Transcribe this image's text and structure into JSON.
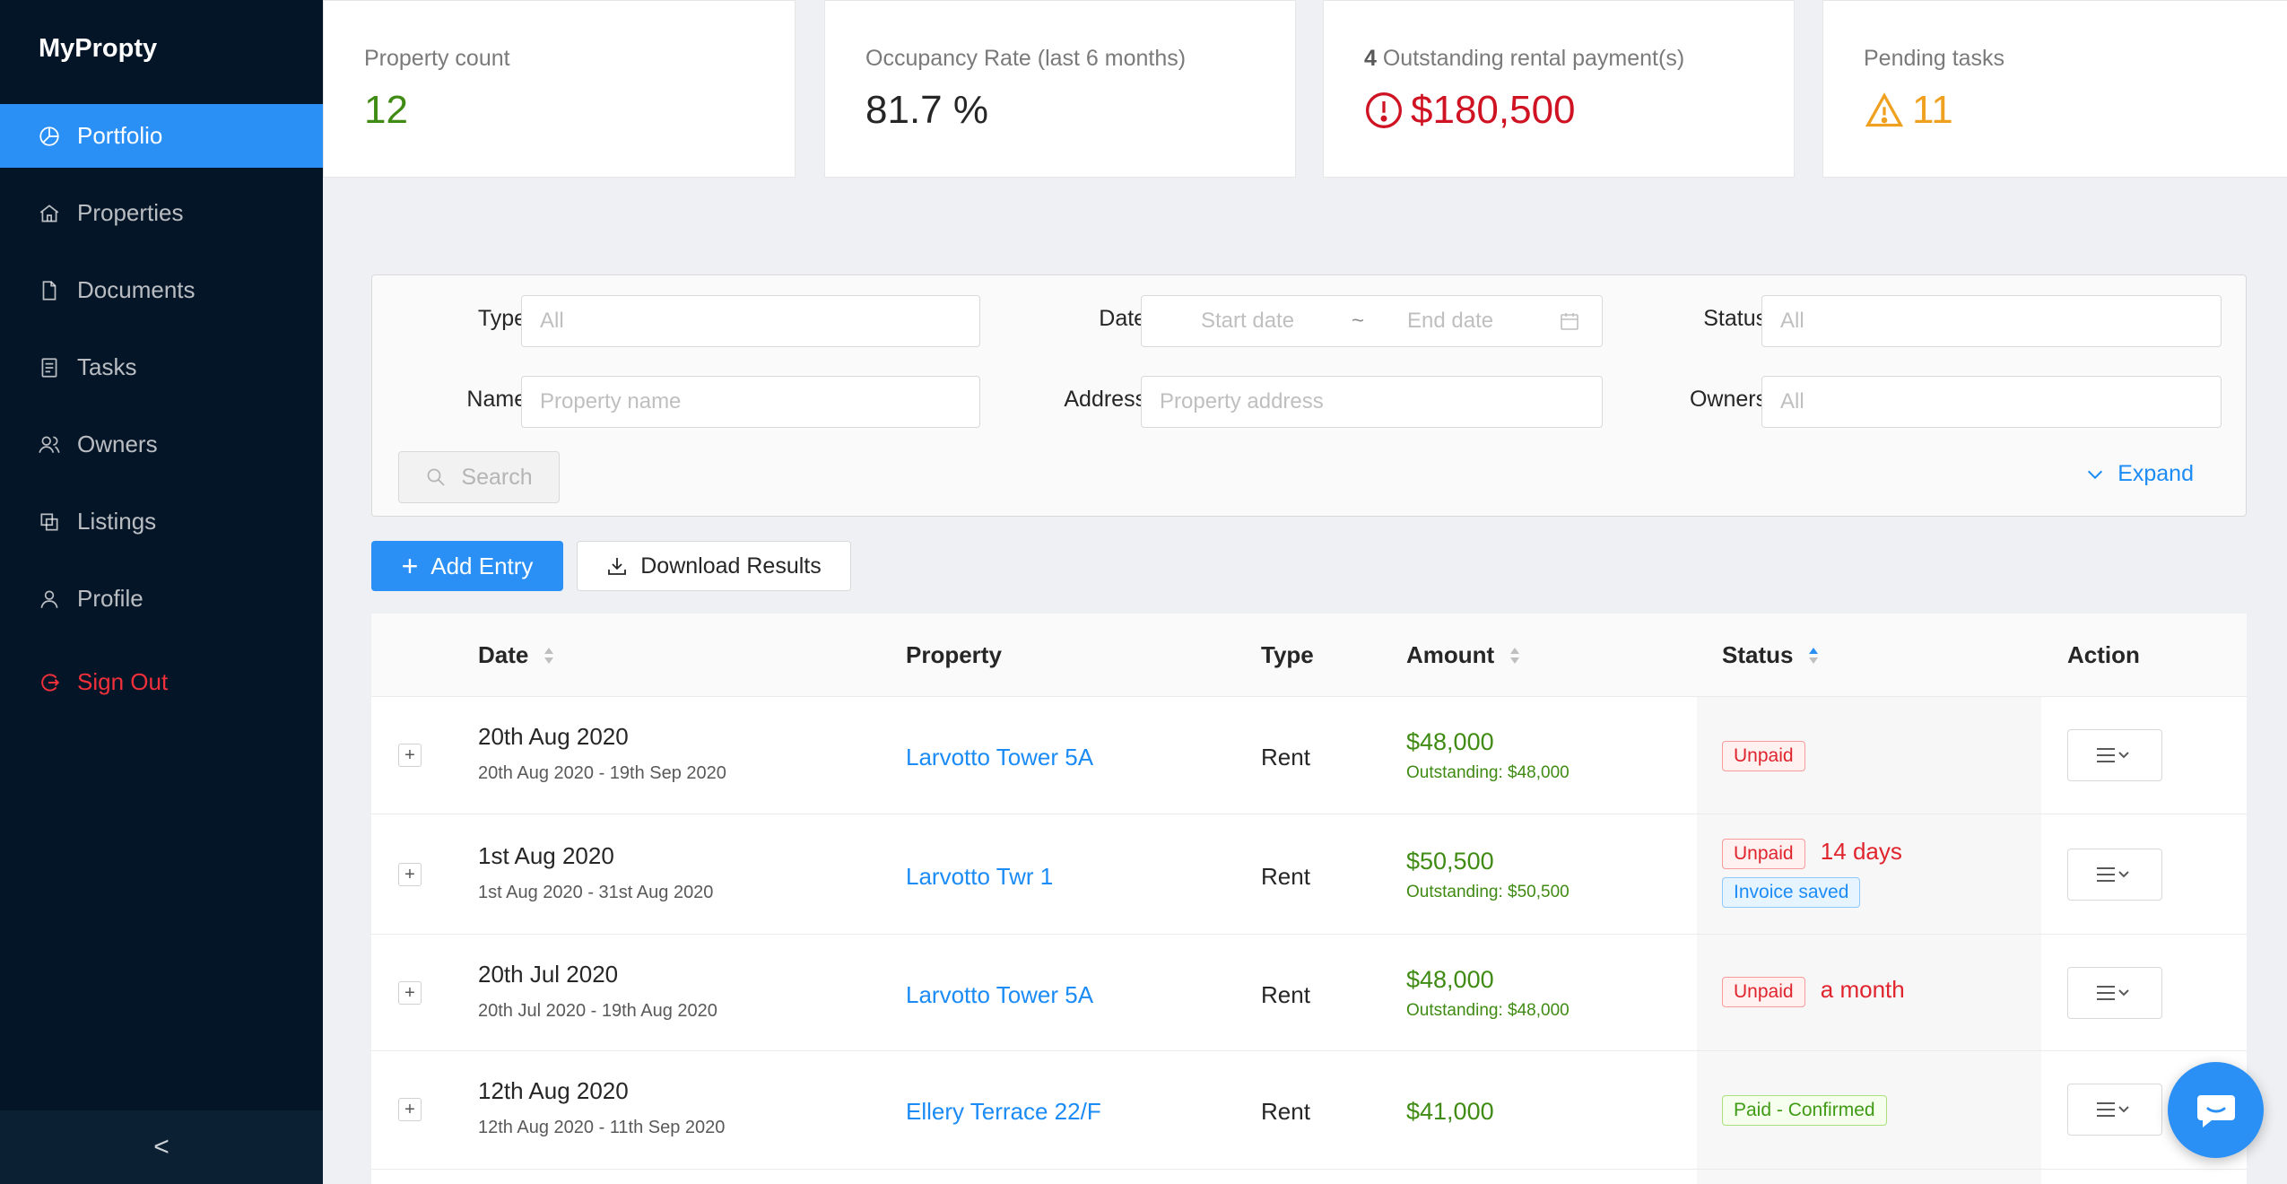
{
  "app": {
    "brand": "MyPropty"
  },
  "sidebar": {
    "items": [
      {
        "label": "Portfolio",
        "icon": "pie-chart-icon",
        "active": true
      },
      {
        "label": "Properties",
        "icon": "home-icon"
      },
      {
        "label": "Documents",
        "icon": "file-icon"
      },
      {
        "label": "Tasks",
        "icon": "task-list-icon"
      },
      {
        "label": "Owners",
        "icon": "team-icon"
      },
      {
        "label": "Listings",
        "icon": "copy-icon"
      },
      {
        "label": "Profile",
        "icon": "user-icon"
      }
    ],
    "signout": {
      "label": "Sign Out",
      "icon": "logout-icon"
    },
    "collapse_glyph": "<"
  },
  "stats": {
    "property_count": {
      "label": "Property count",
      "value": "12"
    },
    "occupancy": {
      "label": "Occupancy Rate (last 6 months)",
      "value": "81.7 %"
    },
    "outstanding": {
      "count": "4",
      "label": "Outstanding rental payment(s)",
      "value": "$180,500"
    },
    "pending": {
      "label": "Pending tasks",
      "value": "11"
    }
  },
  "filter": {
    "type": {
      "label": "Type",
      "placeholder": "All"
    },
    "date": {
      "label": "Date",
      "start_placeholder": "Start date",
      "separator": "~",
      "end_placeholder": "End date"
    },
    "status": {
      "label": "Status",
      "placeholder": "All"
    },
    "name": {
      "label": "Name",
      "placeholder": "Property name"
    },
    "address": {
      "label": "Address",
      "placeholder": "Property address"
    },
    "owners": {
      "label": "Owners",
      "placeholder": "All"
    },
    "search_label": "Search",
    "expand_label": "Expand"
  },
  "toolbar": {
    "add_label": "Add Entry",
    "download_label": "Download Results"
  },
  "table": {
    "columns": {
      "date": "Date",
      "property": "Property",
      "type": "Type",
      "amount": "Amount",
      "status": "Status",
      "action": "Action"
    },
    "rows": [
      {
        "date": "20th Aug 2020",
        "range": "20th Aug 2020 - 19th Sep 2020",
        "property": "Larvotto Tower 5A",
        "type": "Rent",
        "amount": "$48,000",
        "outstanding": "Outstanding: $48,000",
        "status": "Unpaid",
        "overdue": "",
        "extra_tag": ""
      },
      {
        "date": "1st Aug 2020",
        "range": "1st Aug 2020 - 31st Aug 2020",
        "property": "Larvotto Twr 1",
        "type": "Rent",
        "amount": "$50,500",
        "outstanding": "Outstanding: $50,500",
        "status": "Unpaid",
        "overdue": "14 days",
        "extra_tag": "Invoice saved"
      },
      {
        "date": "20th Jul 2020",
        "range": "20th Jul 2020 - 19th Aug 2020",
        "property": "Larvotto Tower 5A",
        "type": "Rent",
        "amount": "$48,000",
        "outstanding": "Outstanding: $48,000",
        "status": "Unpaid",
        "overdue": "a month",
        "extra_tag": ""
      },
      {
        "date": "12th Aug 2020",
        "range": "12th Aug 2020 - 11th Sep 2020",
        "property": "Ellery Terrace 22/F",
        "type": "Rent",
        "amount": "$41,000",
        "outstanding": "",
        "status": "Paid - Confirmed",
        "overdue": "",
        "extra_tag": ""
      }
    ]
  },
  "colors": {
    "accent": "#2b90f5",
    "sidebar_bg": "#041527",
    "danger": "#cf1323",
    "success": "#3f8b13",
    "warning": "#f0a01f"
  }
}
